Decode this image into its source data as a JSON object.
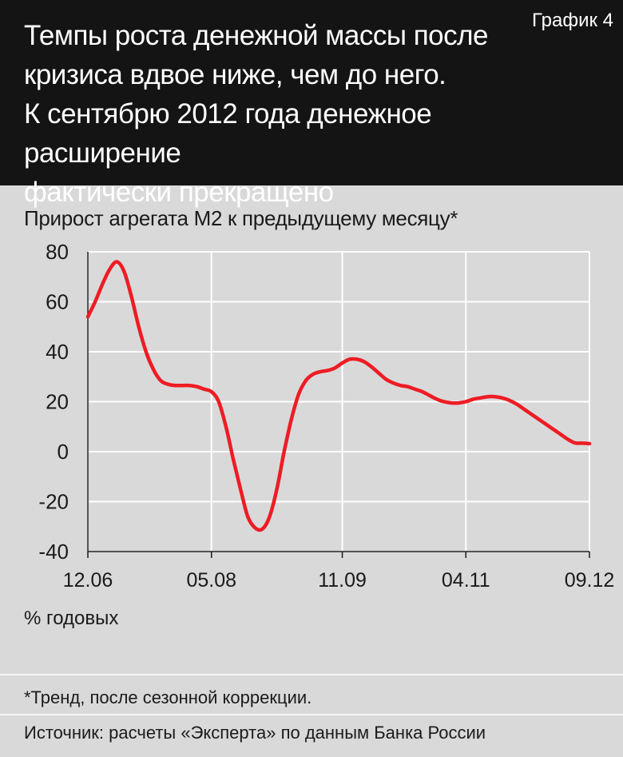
{
  "header": {
    "title_lines": [
      "Темпы роста денежной массы после",
      "кризиса вдвое ниже, чем до него.",
      "К сентябрю 2012 года денежное расширение",
      "фактически прекращено"
    ],
    "chart_number": "График 4"
  },
  "chart_data": {
    "type": "line",
    "title": "Прирост агрегата М2 к предыдущему месяцу*",
    "ylabel": "% годовых",
    "ylim": [
      -40,
      80
    ],
    "yticks": [
      80,
      60,
      40,
      20,
      0,
      -20,
      -40
    ],
    "xticks": [
      "12.06",
      "05.08",
      "11.09",
      "04.11",
      "09.12"
    ],
    "grid": true,
    "colors": {
      "line": "#ee1c24",
      "grid": "#ffffff"
    },
    "series": [
      {
        "x": [
          "12.06",
          "01.07",
          "02.07",
          "03.07",
          "04.07",
          "05.07",
          "06.07",
          "07.07",
          "08.07",
          "09.07",
          "10.07",
          "11.07",
          "12.07",
          "01.08",
          "02.08",
          "03.08",
          "04.08",
          "05.08",
          "06.08",
          "07.08",
          "08.08",
          "09.08",
          "10.08",
          "11.08",
          "12.08",
          "01.09",
          "02.09",
          "03.09",
          "04.09",
          "05.09",
          "06.09",
          "07.09",
          "08.09",
          "09.09",
          "10.09",
          "11.09",
          "12.09",
          "01.10",
          "02.10",
          "03.10",
          "04.10",
          "05.10",
          "06.10",
          "07.10",
          "08.10",
          "09.10",
          "10.10",
          "11.10",
          "12.10",
          "01.11",
          "02.11",
          "03.11",
          "04.11",
          "05.11",
          "06.11",
          "07.11",
          "08.11",
          "09.11",
          "10.11",
          "11.11",
          "12.11",
          "01.12",
          "02.12",
          "03.12",
          "04.12",
          "05.12",
          "06.12",
          "07.12",
          "08.12",
          "09.12"
        ],
        "values": [
          54,
          60,
          67,
          73,
          76,
          72,
          62,
          50,
          40,
          33,
          28.5,
          27,
          26.5,
          26.5,
          26.5,
          26,
          25,
          24,
          20,
          10,
          -3,
          -15,
          -26,
          -30.5,
          -31,
          -26,
          -15,
          0,
          13,
          23,
          28.5,
          31,
          32,
          32.5,
          33.5,
          35.5,
          37,
          37,
          36,
          34,
          31.5,
          29,
          27.5,
          26.5,
          26,
          25,
          24,
          22.5,
          21,
          20,
          19.5,
          19.5,
          20,
          21,
          21.5,
          22,
          22,
          21.5,
          20.5,
          19,
          17,
          15,
          13,
          11,
          9,
          7,
          5,
          3.5,
          3.4,
          3.2
        ]
      }
    ]
  },
  "footer": {
    "note": "*Тренд, после сезонной коррекции.",
    "source": "Источник: расчеты «Эксперта» по данным Банка России"
  }
}
